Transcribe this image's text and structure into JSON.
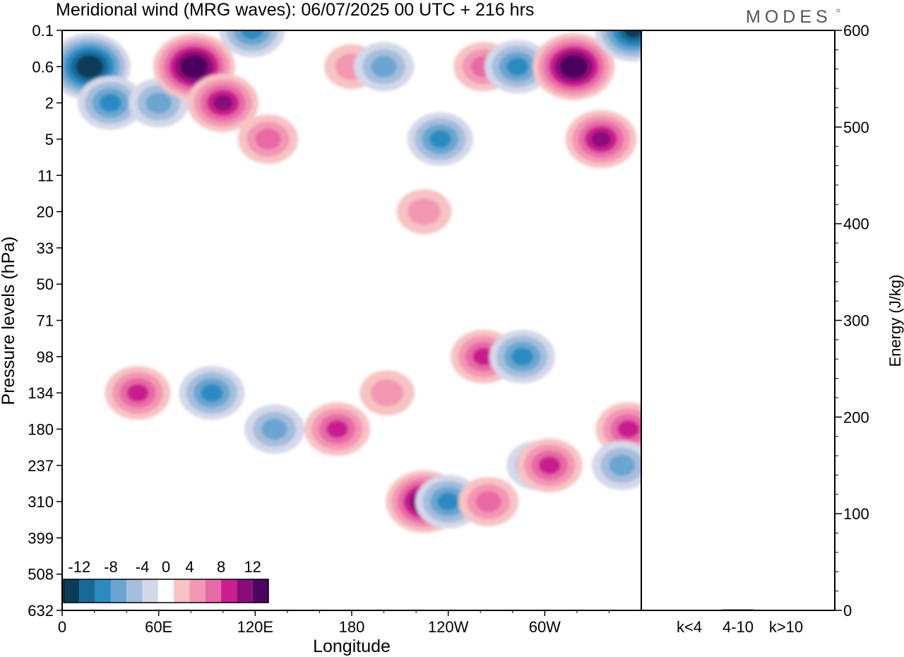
{
  "title": "Meridional wind (MRG waves):  06/07/2025  00 UTC  + 216 hrs",
  "logo_text": "MODES",
  "chart_data": [
    {
      "type": "heatmap",
      "title": "Meridional wind (MRG waves):  06/07/2025  00 UTC  + 216 hrs",
      "xlabel": "Longitude",
      "ylabel": "Pressure levels (hPa)",
      "x_ticks": [
        "0",
        "60E",
        "120E",
        "180",
        "120W",
        "60W"
      ],
      "x_tick_degrees": [
        0,
        60,
        120,
        180,
        240,
        300
      ],
      "x_range_degrees": [
        0,
        360
      ],
      "y_ticks": [
        "0.1",
        "0.6",
        "2",
        "5",
        "11",
        "20",
        "33",
        "50",
        "71",
        "98",
        "134",
        "180",
        "237",
        "310",
        "399",
        "508",
        "632"
      ],
      "y_scale": "categorical pressure levels, top to bottom",
      "colorbar": {
        "labels": [
          "-12",
          "-8",
          "-4",
          "0",
          "4",
          "8",
          "12"
        ],
        "levels": [
          -14,
          -12,
          -10,
          -8,
          -6,
          -4,
          -2,
          2,
          4,
          6,
          8,
          10,
          12,
          14
        ],
        "colors": [
          "#0a3b59",
          "#176a98",
          "#2a8bc2",
          "#6aa6d0",
          "#a4bedc",
          "#d4d8e8",
          "#ffffff",
          "#f7c3c3",
          "#f397b3",
          "#e76aa5",
          "#c91f8f",
          "#8b0c7a",
          "#4c065f"
        ]
      },
      "features": [
        {
          "lon": 17,
          "level": "0.6",
          "value": -14
        },
        {
          "lon": 30,
          "level": "2",
          "value": -8
        },
        {
          "lon": 60,
          "level": "2",
          "value": -6
        },
        {
          "lon": 82,
          "level": "0.6",
          "value": 14
        },
        {
          "lon": 100,
          "level": "2",
          "value": 10
        },
        {
          "lon": 118,
          "level": "0.1",
          "value": -8
        },
        {
          "lon": 128,
          "level": "5",
          "value": 6
        },
        {
          "lon": 180,
          "level": "0.6",
          "value": 4
        },
        {
          "lon": 200,
          "level": "0.6",
          "value": -6
        },
        {
          "lon": 235,
          "level": "5",
          "value": -8
        },
        {
          "lon": 262,
          "level": "0.6",
          "value": 6
        },
        {
          "lon": 283,
          "level": "0.6",
          "value": -8
        },
        {
          "lon": 318,
          "level": "0.6",
          "value": 14
        },
        {
          "lon": 335,
          "level": "5",
          "value": 10
        },
        {
          "lon": 355,
          "level": "0.1",
          "value": -12
        },
        {
          "lon": 225,
          "level": "20",
          "value": 4
        },
        {
          "lon": 47,
          "level": "134",
          "value": 8
        },
        {
          "lon": 93,
          "level": "134",
          "value": -8
        },
        {
          "lon": 132,
          "level": "180",
          "value": -6
        },
        {
          "lon": 171,
          "level": "180",
          "value": 8
        },
        {
          "lon": 202,
          "level": "134",
          "value": 4
        },
        {
          "lon": 225,
          "level": "310",
          "value": 12
        },
        {
          "lon": 240,
          "level": "310",
          "value": -8
        },
        {
          "lon": 262,
          "level": "98",
          "value": 8
        },
        {
          "lon": 265,
          "level": "310",
          "value": 6
        },
        {
          "lon": 286,
          "level": "98",
          "value": -8
        },
        {
          "lon": 295,
          "level": "237",
          "value": -6
        },
        {
          "lon": 303,
          "level": "237",
          "value": 8
        },
        {
          "lon": 352,
          "level": "180",
          "value": 8
        },
        {
          "lon": 348,
          "level": "237",
          "value": -6
        }
      ]
    },
    {
      "type": "bar",
      "ylabel": "Energy (J/kg)",
      "ylim": [
        0,
        600
      ],
      "y_ticks": [
        "0",
        "100",
        "200",
        "300",
        "400",
        "500",
        "600"
      ],
      "categories": [
        "k<4",
        "4-10",
        "k>10"
      ],
      "values": [
        0.5,
        1,
        0.5
      ]
    }
  ]
}
